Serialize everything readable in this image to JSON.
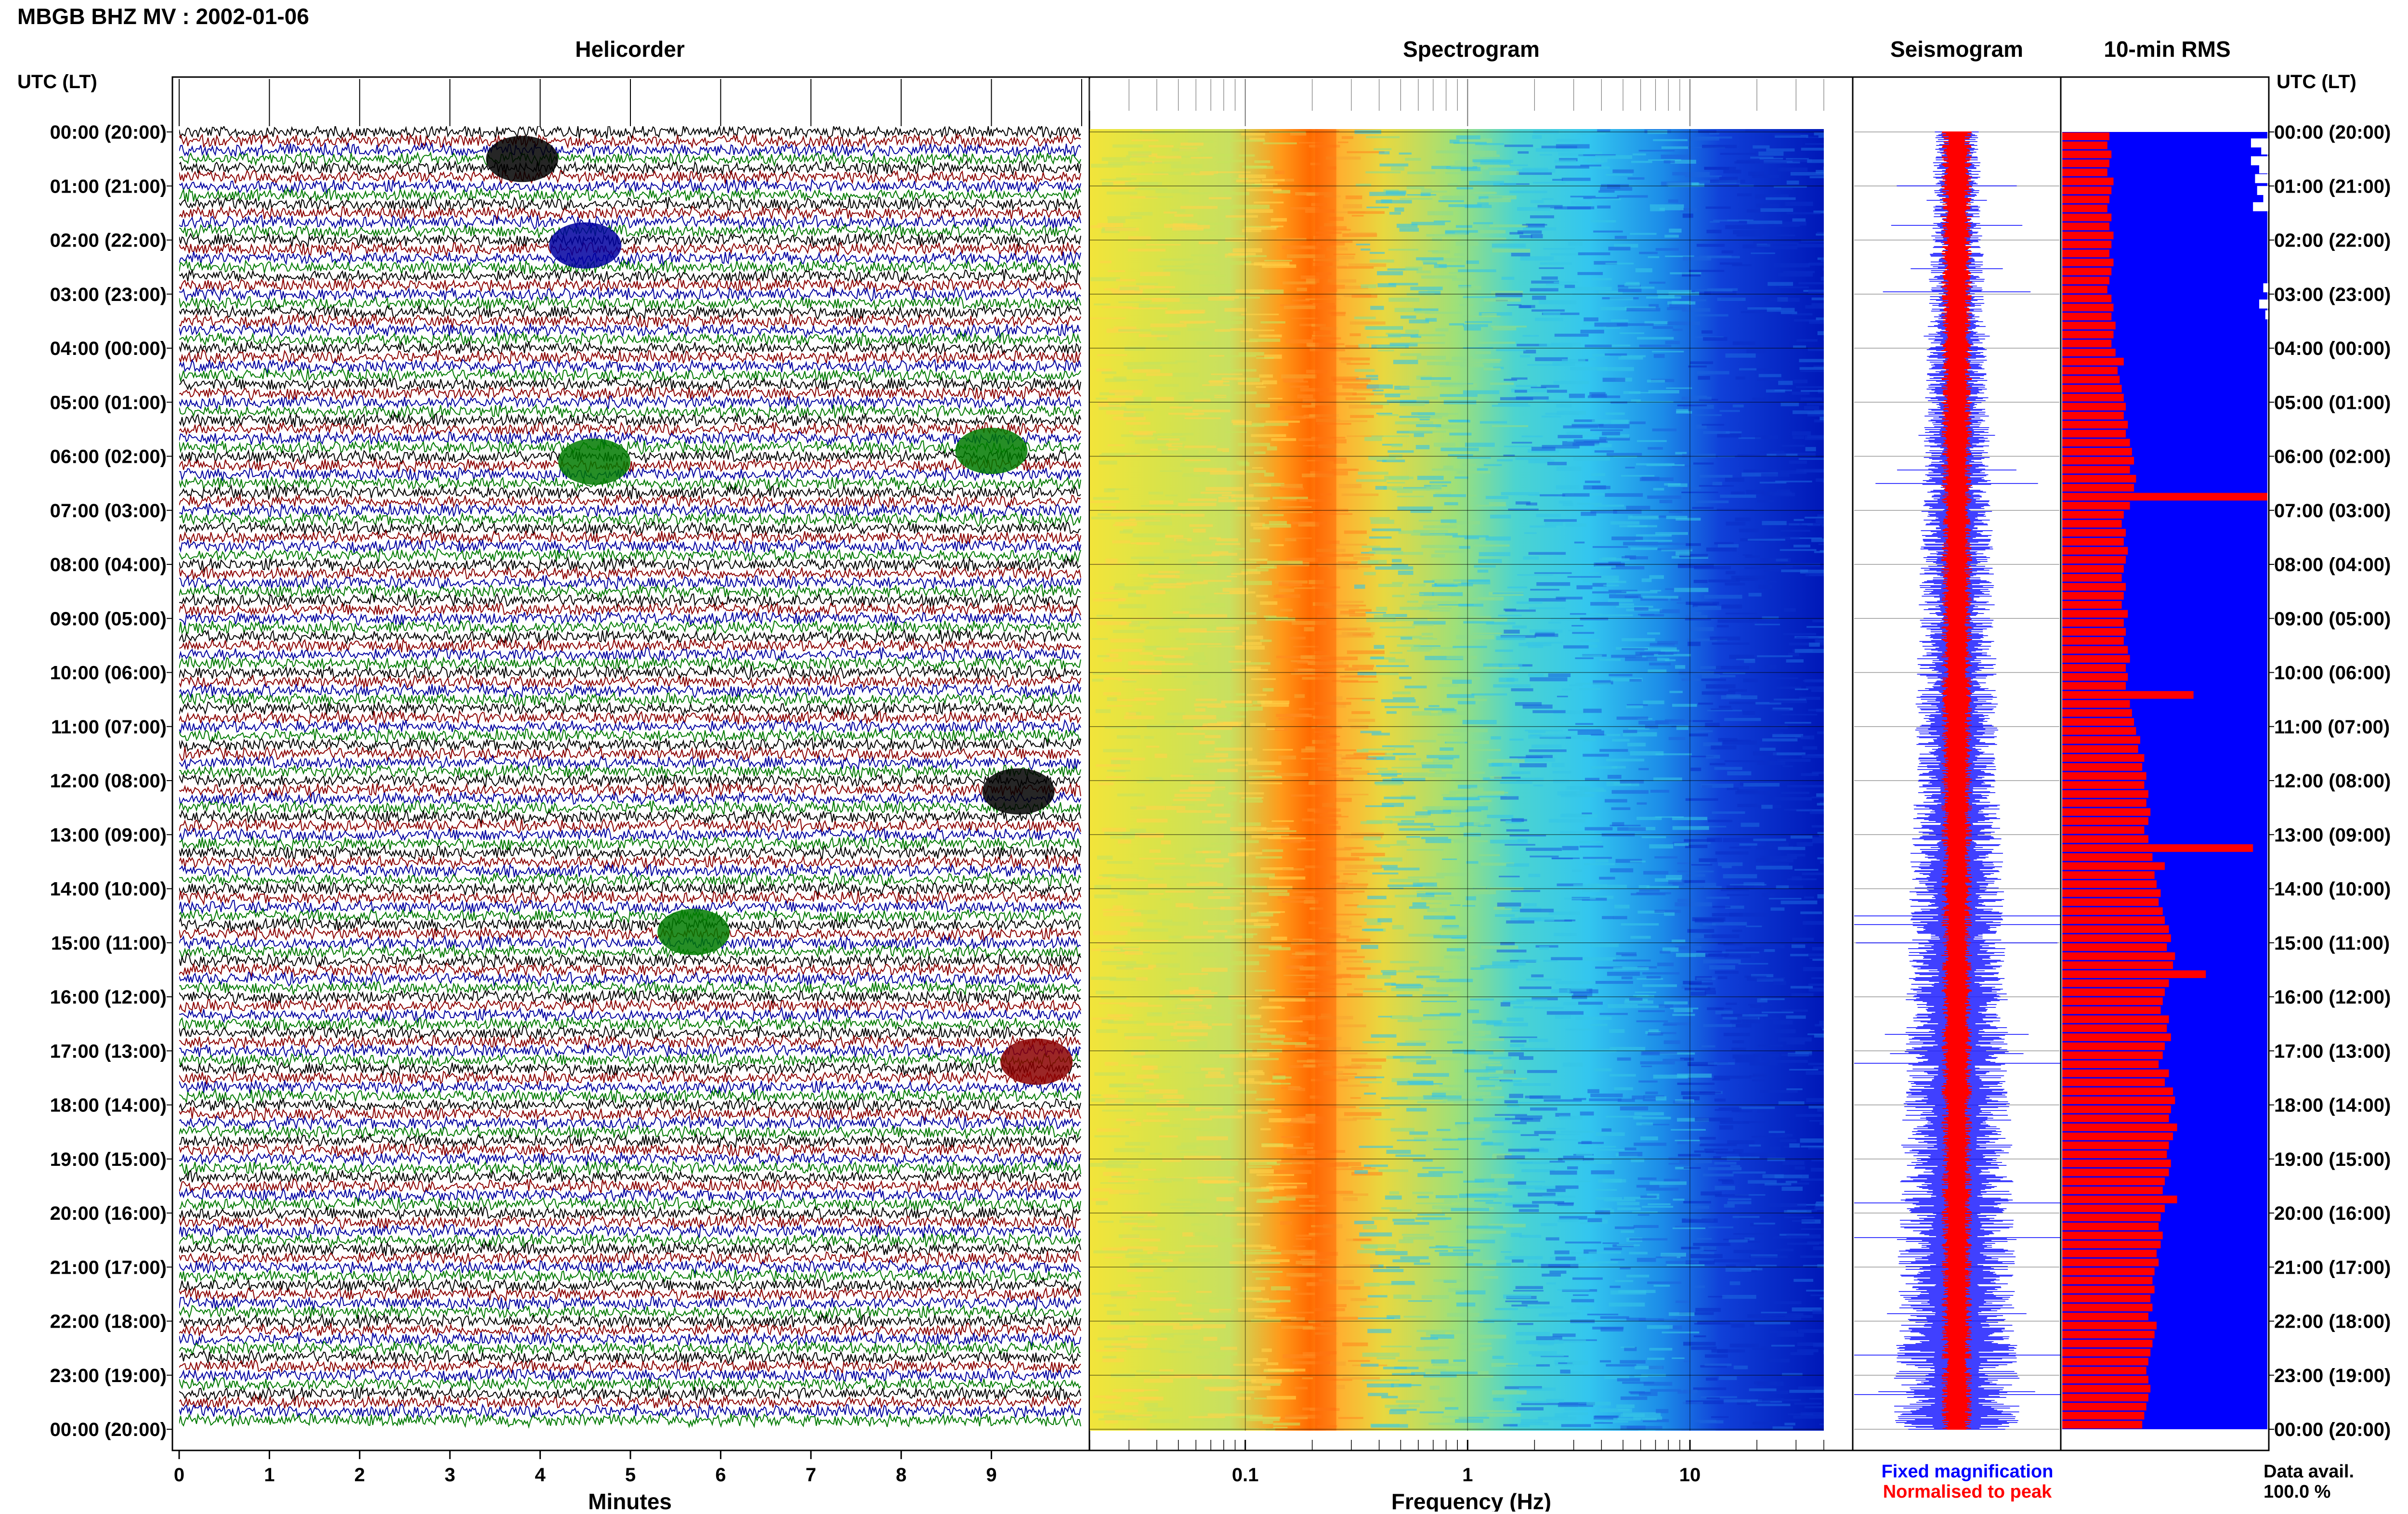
{
  "title": "MBGB BHZ MV : 2002-01-06",
  "axis_side_label": "UTC (LT)",
  "panels": {
    "helicorder": "Helicorder",
    "spectrogram": "Spectrogram",
    "seismogram": "Seismogram",
    "rms": "10-min RMS"
  },
  "time_labels": [
    "00:00 (20:00)",
    "01:00 (21:00)",
    "02:00 (22:00)",
    "03:00 (23:00)",
    "04:00 (00:00)",
    "05:00 (01:00)",
    "06:00 (02:00)",
    "07:00 (03:00)",
    "08:00 (04:00)",
    "09:00 (05:00)",
    "10:00 (06:00)",
    "11:00 (07:00)",
    "12:00 (08:00)",
    "13:00 (09:00)",
    "14:00 (10:00)",
    "15:00 (11:00)",
    "16:00 (12:00)",
    "17:00 (13:00)",
    "18:00 (14:00)",
    "19:00 (15:00)",
    "20:00 (16:00)",
    "21:00 (17:00)",
    "22:00 (18:00)",
    "23:00 (19:00)",
    "00:00 (20:00)"
  ],
  "helicorder_axis": {
    "label": "Minutes",
    "ticks": [
      "0",
      "1",
      "2",
      "3",
      "4",
      "5",
      "6",
      "7",
      "8",
      "9"
    ],
    "range": [
      0,
      10
    ]
  },
  "spectrogram_axis": {
    "label": "Frequency (Hz)",
    "ticks": [
      "0.1",
      "1",
      "10"
    ],
    "scale": "log",
    "range": [
      0.02,
      40
    ]
  },
  "legend": {
    "fixed": "Fixed magnification",
    "normalised": "Normalised to peak",
    "fixed_color": "#0000ff",
    "normalised_color": "#ff0000"
  },
  "data_avail": {
    "label": "Data avail.",
    "value": "100.0 %"
  },
  "colors": {
    "trace_black": "#000000",
    "trace_red": "#8b0000",
    "trace_blue": "#0000a0",
    "trace_green": "#007a00",
    "rms_fill": "#0000ff",
    "rms_bar": "#ff0000"
  },
  "chart_data": [
    {
      "type": "line",
      "name": "helicorder",
      "title": "Helicorder",
      "xlabel": "Minutes",
      "xlim": [
        0,
        10
      ],
      "ylim_hours": [
        0,
        24
      ],
      "grid": true,
      "events": [
        {
          "hour": 5.9,
          "minute": 9.0,
          "color": "green"
        },
        {
          "hour": 6.1,
          "minute": 4.6,
          "color": "green"
        },
        {
          "hour": 12.2,
          "minute": 9.3,
          "color": "black"
        },
        {
          "hour": 14.8,
          "minute": 5.7,
          "color": "green"
        },
        {
          "hour": 17.2,
          "minute": 9.5,
          "color": "red"
        },
        {
          "hour": 2.1,
          "minute": 4.5,
          "color": "blue"
        },
        {
          "hour": 0.5,
          "minute": 3.8,
          "color": "black"
        }
      ]
    },
    {
      "type": "heatmap",
      "name": "spectrogram",
      "title": "Spectrogram",
      "xlabel": "Frequency (Hz)",
      "xscale": "log",
      "xlim": [
        0.02,
        40
      ],
      "peak_frequency_hz": 0.23
    },
    {
      "type": "bar",
      "name": "10-min RMS",
      "title": "10-min RMS",
      "orientation": "horizontal",
      "xlim": [
        0,
        1
      ],
      "bins_per_hour": 6,
      "values": [
        0.23,
        0.22,
        0.24,
        0.23,
        0.22,
        0.25,
        0.24,
        0.23,
        0.22,
        0.24,
        0.23,
        0.25,
        0.24,
        0.23,
        0.25,
        0.24,
        0.23,
        0.22,
        0.24,
        0.25,
        0.24,
        0.26,
        0.25,
        0.24,
        0.26,
        0.3,
        0.27,
        0.28,
        0.29,
        0.3,
        0.31,
        0.3,
        0.32,
        0.31,
        0.33,
        0.34,
        0.35,
        0.33,
        0.36,
        0.35,
        1.0,
        0.33,
        0.3,
        0.29,
        0.31,
        0.3,
        0.32,
        0.31,
        0.3,
        0.29,
        0.31,
        0.3,
        0.29,
        0.32,
        0.3,
        0.31,
        0.3,
        0.32,
        0.33,
        0.31,
        0.32,
        0.31,
        0.64,
        0.33,
        0.34,
        0.35,
        0.36,
        0.38,
        0.37,
        0.4,
        0.39,
        0.41,
        0.4,
        0.42,
        0.41,
        0.43,
        0.42,
        0.4,
        0.42,
        0.93,
        0.44,
        0.5,
        0.45,
        0.46,
        0.48,
        0.47,
        0.49,
        0.5,
        0.52,
        0.53,
        0.51,
        0.55,
        0.54,
        0.7,
        0.52,
        0.5,
        0.49,
        0.48,
        0.52,
        0.51,
        0.53,
        0.5,
        0.49,
        0.47,
        0.52,
        0.5,
        0.54,
        0.55,
        0.53,
        0.52,
        0.56,
        0.54,
        0.52,
        0.51,
        0.53,
        0.52,
        0.5,
        0.49,
        0.56,
        0.5,
        0.48,
        0.47,
        0.49,
        0.48,
        0.46,
        0.47,
        0.45,
        0.44,
        0.45,
        0.43,
        0.44,
        0.42,
        0.46,
        0.45,
        0.44,
        0.43,
        0.42,
        0.41,
        0.42,
        0.43,
        0.42,
        0.41,
        0.4,
        0.39
      ]
    }
  ]
}
